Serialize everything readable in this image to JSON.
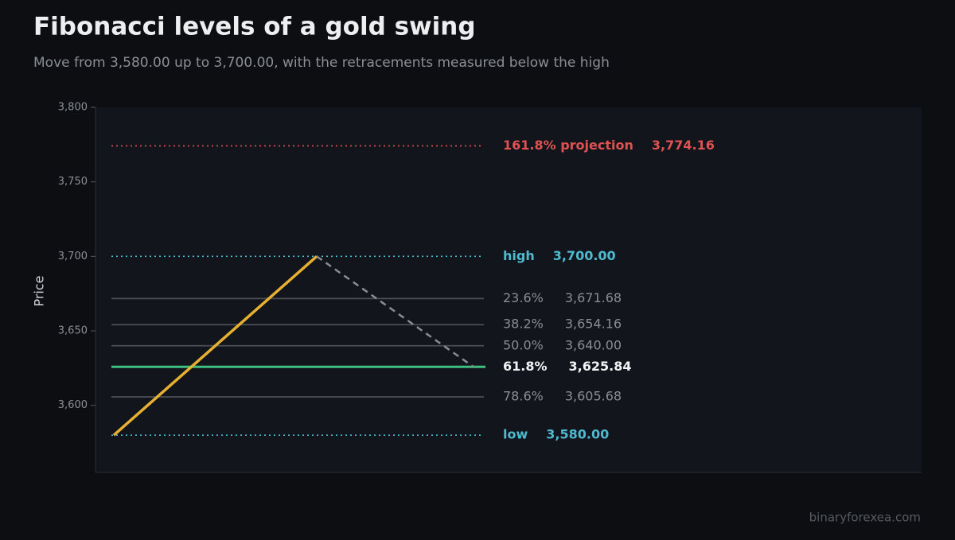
{
  "chart_data": {
    "type": "fib-levels",
    "title": "Fibonacci levels of a gold swing",
    "subtitle": "Move from 3,580.00 up to 3,700.00, with the retracements measured below the high",
    "y_label": "Price",
    "watermark": "binaryforexea.com",
    "ylim": [
      3555,
      3800
    ],
    "yticks": [
      {
        "value": 3600,
        "label": "3,600"
      },
      {
        "value": 3650,
        "label": "3,650"
      },
      {
        "value": 3700,
        "label": "3,700"
      },
      {
        "value": 3750,
        "label": "3,750"
      },
      {
        "value": 3800,
        "label": "3,800"
      }
    ],
    "categories": [
      "161.8% projection",
      "high",
      "23.6%",
      "38.2%",
      "50.0%",
      "61.8%",
      "78.6%",
      "low"
    ],
    "values": [
      3774.16,
      3700,
      3671.68,
      3654.16,
      3640,
      3625.84,
      3605.68,
      3580
    ],
    "value_labels": [
      "3,774.16",
      "3,700.00",
      "3,671.68",
      "3,654.16",
      "3,640.00",
      "3,625.84",
      "3,605.68",
      "3,580.00"
    ],
    "colors": [
      "#e05252",
      "#4fb9cf",
      "#4b4e54",
      "#4b4e54",
      "#4b4e54",
      "#3fbf7f",
      "#4b4e54",
      "#4fb9cf"
    ],
    "styles": [
      "dotted",
      "dotted",
      "solid",
      "solid",
      "solid",
      "bold",
      "solid",
      "dotted"
    ],
    "swing_color": "#e8b030",
    "retrace_color": "#8a8d92"
  }
}
